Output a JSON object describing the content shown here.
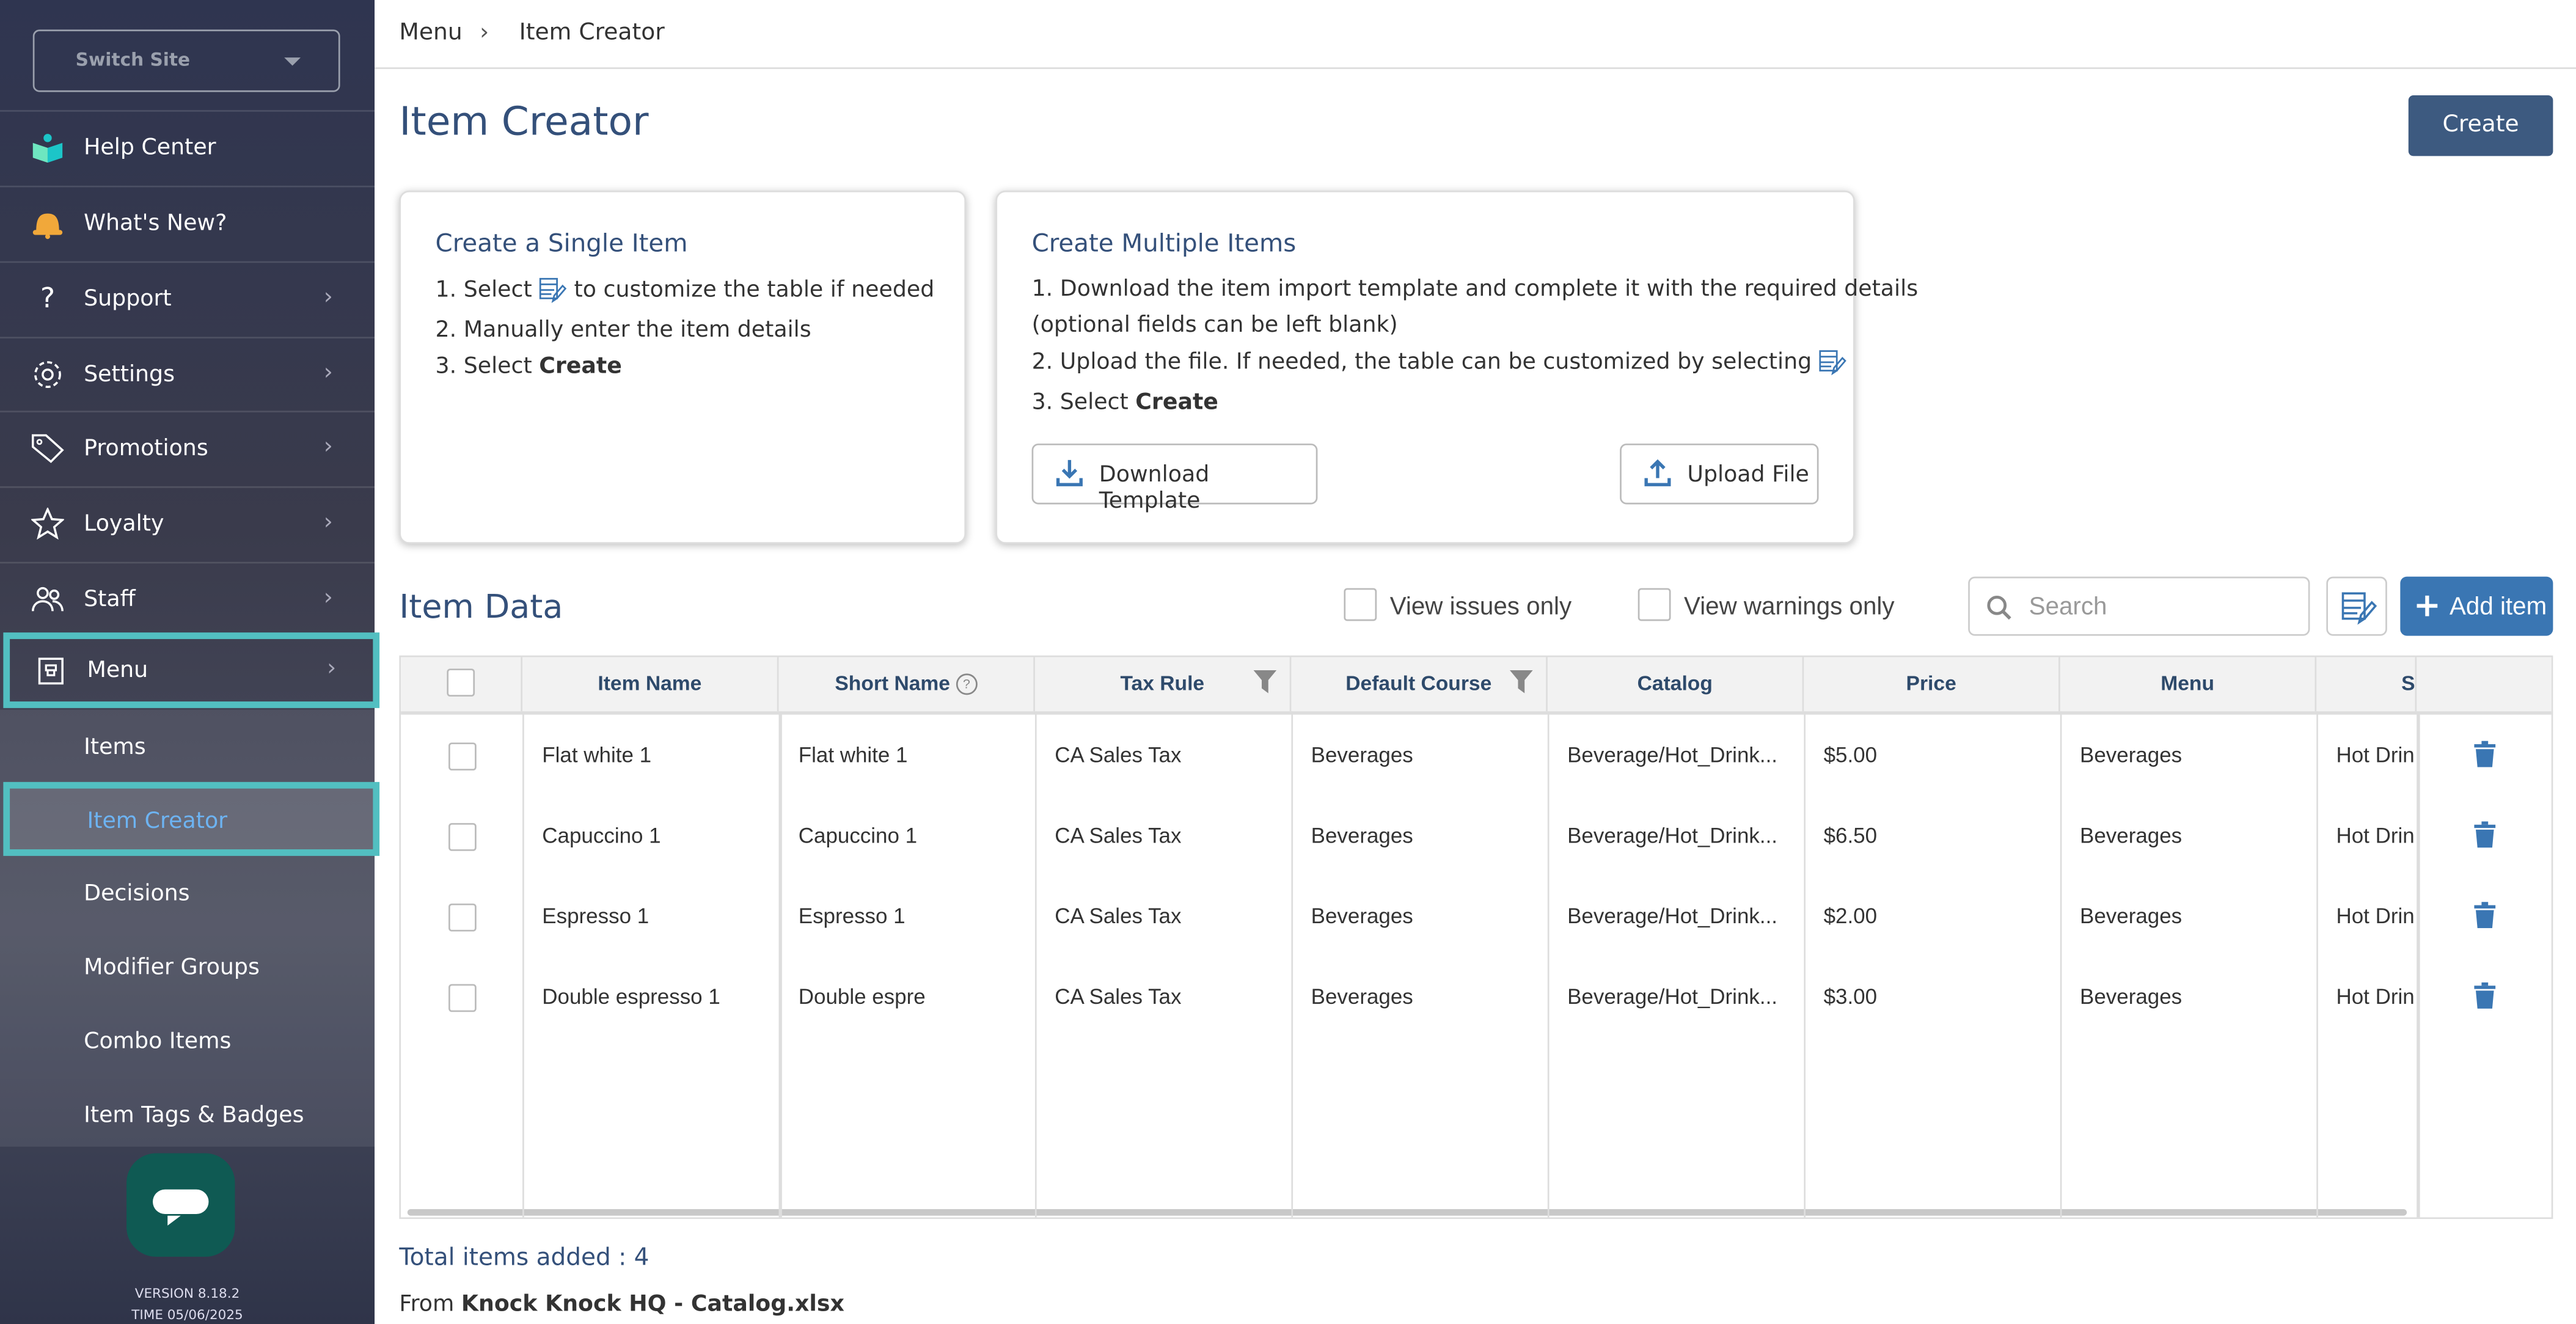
{
  "sidebar": {
    "switch_site": "Switch Site",
    "nav": [
      {
        "label": "Help Center",
        "icon": "help-center-book-icon",
        "chevron": false
      },
      {
        "label": "What's New?",
        "icon": "bell-icon",
        "chevron": false
      },
      {
        "label": "Support",
        "icon": "question-icon",
        "chevron": true
      },
      {
        "label": "Settings",
        "icon": "gear-icon",
        "chevron": true
      },
      {
        "label": "Promotions",
        "icon": "tag-icon",
        "chevron": true
      },
      {
        "label": "Loyalty",
        "icon": "star-icon",
        "chevron": true
      },
      {
        "label": "Staff",
        "icon": "people-icon",
        "chevron": true
      },
      {
        "label": "Menu",
        "icon": "menu-book-icon",
        "chevron": true
      }
    ],
    "sub": [
      "Items",
      "Item Creator",
      "Decisions",
      "Modifier Groups",
      "Combo Items",
      "Item Tags & Badges"
    ],
    "version": "VERSION 8.18.2",
    "time": "TIME 05/06/2025"
  },
  "breadcrumb": [
    "Menu",
    "Item Creator"
  ],
  "page_title": "Item Creator",
  "create_label": "Create",
  "single": {
    "title": "Create a Single Item",
    "l1a": "1. Select",
    "l1b": "to customize the table if needed",
    "l2": "2. Manually enter the item details",
    "l3a": "3. Select ",
    "l3b": "Create"
  },
  "multi": {
    "title": "Create Multiple Items",
    "l1": "1. Download the item import template and complete it with the required details",
    "l1c": "(optional fields can be left blank)",
    "l2": "2. Upload the file. If needed, the table can be customized by selecting",
    "l3a": "3. Select ",
    "l3b": "Create",
    "download": "Download Template",
    "upload": "Upload File"
  },
  "item_data": {
    "title": "Item Data",
    "issues": "View issues only",
    "warnings": "View warnings only",
    "search_placeholder": "Search",
    "add": "Add item"
  },
  "table": {
    "headers": [
      "Item Name",
      "Short Name",
      "Tax Rule",
      "Default Course",
      "Catalog",
      "Price",
      "Menu",
      "S"
    ],
    "rows": [
      [
        "Flat white 1",
        "Flat white 1",
        "CA Sales Tax",
        "Beverages",
        "Beverage/Hot_Drink...",
        "$5.00",
        "Beverages",
        "Hot Drinl"
      ],
      [
        "Capuccino 1",
        "Capuccino 1",
        "CA Sales Tax",
        "Beverages",
        "Beverage/Hot_Drink...",
        "$6.50",
        "Beverages",
        "Hot Drinl"
      ],
      [
        "Espresso 1",
        "Espresso 1",
        "CA Sales Tax",
        "Beverages",
        "Beverage/Hot_Drink...",
        "$2.00",
        "Beverages",
        "Hot Drinl"
      ],
      [
        "Double espresso 1",
        "Double espre",
        "CA Sales Tax",
        "Beverages",
        "Beverage/Hot_Drink...",
        "$3.00",
        "Beverages",
        "Hot Drinl"
      ]
    ]
  },
  "total": "Total items added : 4",
  "from_prefix": "From ",
  "from_file": "Knock Knock HQ - Catalog.xlsx",
  "colors": {
    "accent": "#3a76b3",
    "title": "#34507a",
    "highlight": "#52bfc1",
    "create": "#3d5a80"
  }
}
